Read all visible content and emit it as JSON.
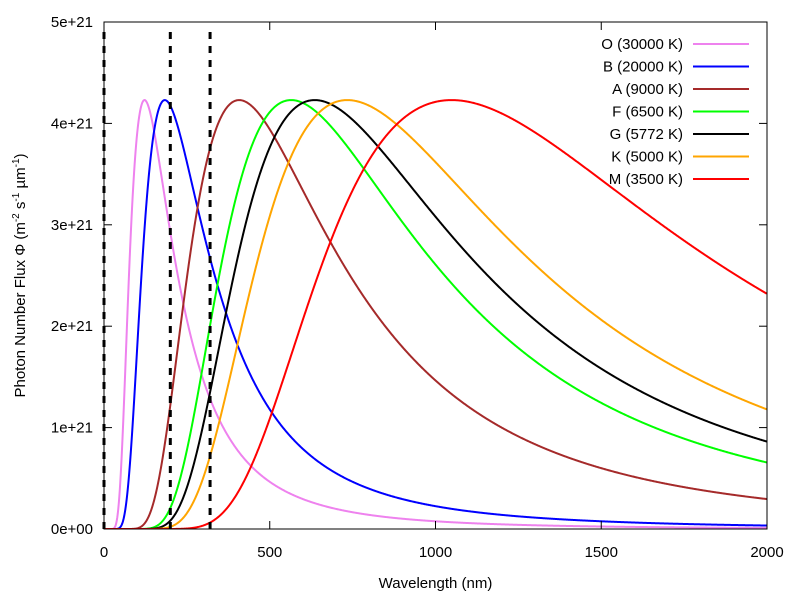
{
  "chart_data": {
    "type": "line",
    "title": "",
    "xlabel": "Wavelength (nm)",
    "ylabel": {
      "prefix": "Photon Number Flux Φ (m",
      "exp1": "-2",
      "mid1": " s",
      "exp2": "-1",
      "mid2": " µm",
      "exp3": "-1",
      "suffix": ")"
    },
    "xlim": [
      0,
      2000
    ],
    "ylim": [
      0,
      5e+21
    ],
    "xticks": [
      0,
      500,
      1000,
      1500,
      2000
    ],
    "xtick_labels": [
      "0",
      "500",
      "1000",
      "1500",
      "2000"
    ],
    "yticks": [
      0,
      1e+21,
      2e+21,
      3e+21,
      4e+21,
      5e+21
    ],
    "ytick_labels": [
      "0e+00",
      "1e+21",
      "2e+21",
      "3e+21",
      "4e+21",
      "5e+21"
    ],
    "grid": false,
    "legend_position": "top-right",
    "normalization": "each curve scaled to the same peak",
    "peak_value": 4.23e+21,
    "series": [
      {
        "name": "O (30000 K)",
        "temperature": 30000,
        "color": "#ee82ee"
      },
      {
        "name": "B (20000 K)",
        "temperature": 20000,
        "color": "#0000ff"
      },
      {
        "name": "A (9000 K)",
        "temperature": 9000,
        "color": "#a52a2a"
      },
      {
        "name": "F (6500 K)",
        "temperature": 6500,
        "color": "#00ff00"
      },
      {
        "name": "G (5772 K)",
        "temperature": 5772,
        "color": "#000000"
      },
      {
        "name": "K (5000 K)",
        "temperature": 5000,
        "color": "#ffa500"
      },
      {
        "name": "M (3500 K)",
        "temperature": 3500,
        "color": "#ff0000"
      }
    ],
    "vertical_lines": {
      "style": "dashed",
      "color": "#000000",
      "x": [
        0,
        200,
        320
      ]
    }
  }
}
